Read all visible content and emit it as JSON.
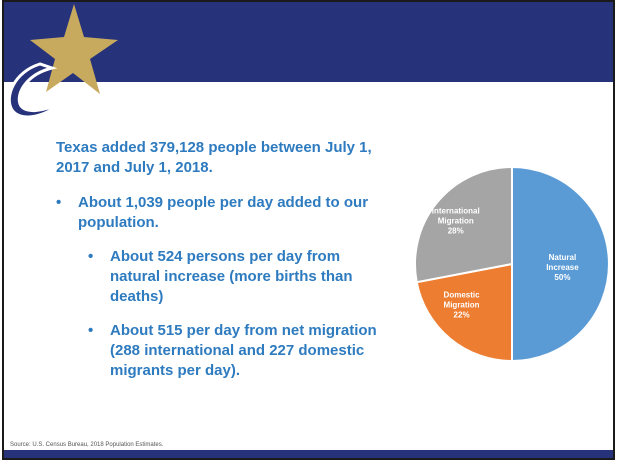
{
  "headline": "Texas added 379,128 people between July 1, 2017 and July 1, 2018.",
  "bullets": [
    {
      "text": "About 1,039 people per day added to our population."
    },
    {
      "text": "About 524 persons per day from natural increase (more births than deaths)"
    },
    {
      "text": "About 515 per day from net migration (288 international and 227 domestic migrants per day)."
    }
  ],
  "bullet_glyph": "•",
  "source": "Source: U.S. Census Bureau, 2018 Population Estimates.",
  "colors": {
    "header": "#26327a",
    "text": "#2e7bbf",
    "natural": "#5b9bd5",
    "domestic": "#ed7d31",
    "international": "#a5a5a5",
    "star": "#c8aa5e"
  },
  "chart_data": {
    "type": "pie",
    "slices": [
      {
        "label_line1": "Natural",
        "label_line2": "Increase",
        "pct_text": "50%",
        "value": 50,
        "color": "#5b9bd5"
      },
      {
        "label_line1": "Domestic",
        "label_line2": "Migration",
        "pct_text": "22%",
        "value": 22,
        "color": "#ed7d31"
      },
      {
        "label_line1": "International",
        "label_line2": "Migration",
        "pct_text": "28%",
        "value": 28,
        "color": "#a5a5a5"
      }
    ]
  }
}
